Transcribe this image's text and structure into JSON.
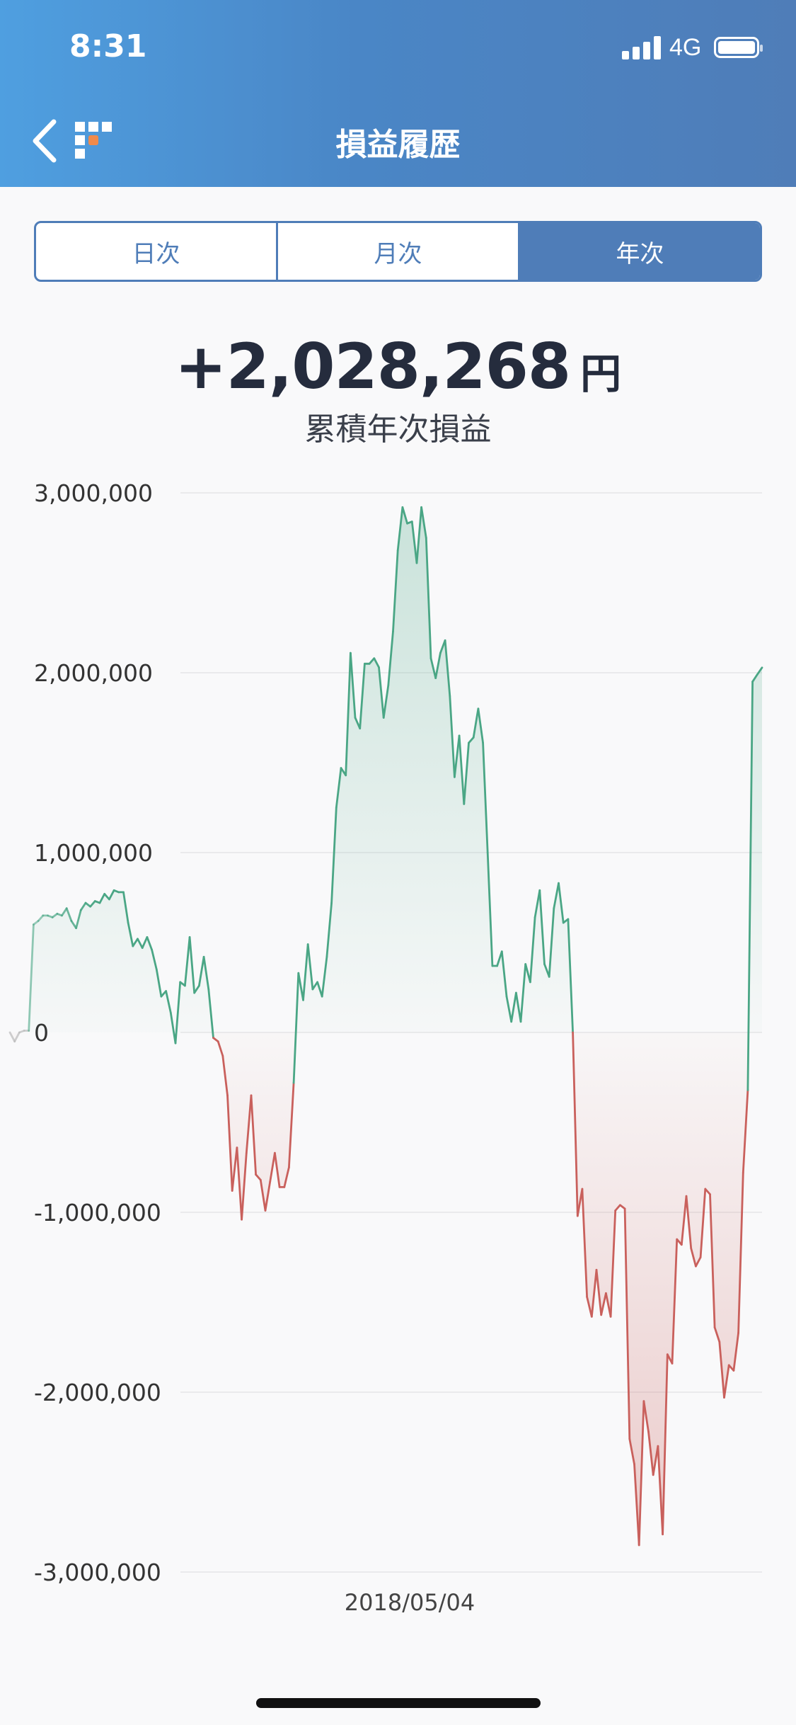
{
  "status_bar": {
    "time": "8:31",
    "network": "4G"
  },
  "header": {
    "title": "損益履歴"
  },
  "icons": {
    "back": "chevron-left-icon",
    "logo": "app-logo-icon",
    "signal": "signal-icon",
    "battery": "battery-icon"
  },
  "colors": {
    "header_start": "#4f9fe0",
    "header_end": "#4f7db8",
    "accent": "#4f7db8",
    "gain": "#4aa685",
    "loss": "#c9605c"
  },
  "tabs": [
    {
      "label": "日次",
      "active": false
    },
    {
      "label": "月次",
      "active": false
    },
    {
      "label": "年次",
      "active": true
    }
  ],
  "summary": {
    "value": "+2,028,268",
    "unit": "円",
    "label": "累積年次損益"
  },
  "chart_data": {
    "type": "line",
    "ylim": [
      -3000000,
      3000000
    ],
    "yticks": [
      3000000,
      2000000,
      1000000,
      0,
      -1000000,
      -2000000,
      -3000000
    ],
    "ytick_labels": [
      "3,000,000",
      "2,000,000",
      "1,000,000",
      "0",
      "-1,000,000",
      "-2,000,000",
      "-3,000,000"
    ],
    "x_label": "2018/05/04",
    "grid": true,
    "values": [
      0,
      -50000,
      0,
      10000,
      10000,
      600000,
      620000,
      650000,
      650000,
      640000,
      660000,
      650000,
      690000,
      620000,
      580000,
      680000,
      720000,
      700000,
      730000,
      720000,
      770000,
      740000,
      790000,
      780000,
      780000,
      610000,
      480000,
      520000,
      470000,
      530000,
      460000,
      350000,
      200000,
      230000,
      110000,
      -60000,
      280000,
      260000,
      530000,
      220000,
      260000,
      420000,
      240000,
      -30000,
      -50000,
      -130000,
      -350000,
      -880000,
      -640000,
      -1040000,
      -670000,
      -350000,
      -790000,
      -820000,
      -990000,
      -830000,
      -670000,
      -860000,
      -860000,
      -750000,
      -280000,
      330000,
      180000,
      490000,
      240000,
      280000,
      200000,
      420000,
      720000,
      1250000,
      1470000,
      1430000,
      2110000,
      1750000,
      1690000,
      2050000,
      2050000,
      2080000,
      2030000,
      1750000,
      1930000,
      2230000,
      2680000,
      2920000,
      2830000,
      2840000,
      2610000,
      2920000,
      2750000,
      2080000,
      1970000,
      2110000,
      2180000,
      1870000,
      1420000,
      1650000,
      1270000,
      1610000,
      1640000,
      1800000,
      1610000,
      1000000,
      370000,
      370000,
      450000,
      200000,
      60000,
      220000,
      60000,
      380000,
      280000,
      640000,
      790000,
      380000,
      310000,
      690000,
      830000,
      610000,
      630000,
      0,
      -1020000,
      -870000,
      -1470000,
      -1580000,
      -1320000,
      -1570000,
      -1450000,
      -1580000,
      -990000,
      -960000,
      -980000,
      -2260000,
      -2400000,
      -2850000,
      -2050000,
      -2220000,
      -2460000,
      -2300000,
      -2790000,
      -1790000,
      -1840000,
      -1150000,
      -1180000,
      -910000,
      -1200000,
      -1300000,
      -1250000,
      -870000,
      -900000,
      -1640000,
      -1720000,
      -2030000,
      -1850000,
      -1880000,
      -1670000,
      -780000,
      -320000,
      1950000,
      1990000,
      2028268
    ]
  }
}
